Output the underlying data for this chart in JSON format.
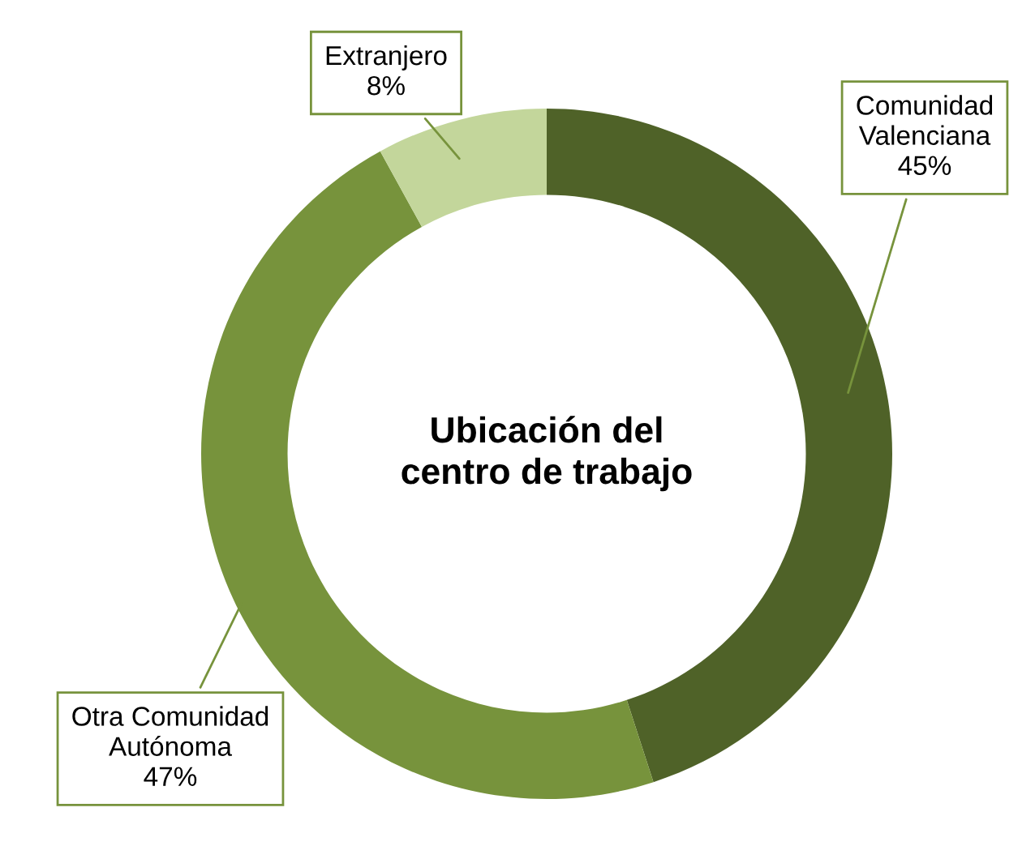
{
  "chart_data": {
    "type": "donut",
    "title": "Ubicación del\ncentro de trabajo",
    "categories": [
      "Comunidad\nValenciana",
      "Otra Comunidad\nAutónoma",
      "Extranjero"
    ],
    "values": [
      45,
      47,
      8
    ],
    "value_labels": [
      "45%",
      "47%",
      "8%"
    ],
    "colors": [
      "#4f6228",
      "#77933c",
      "#c3d69b"
    ],
    "legend": false
  }
}
